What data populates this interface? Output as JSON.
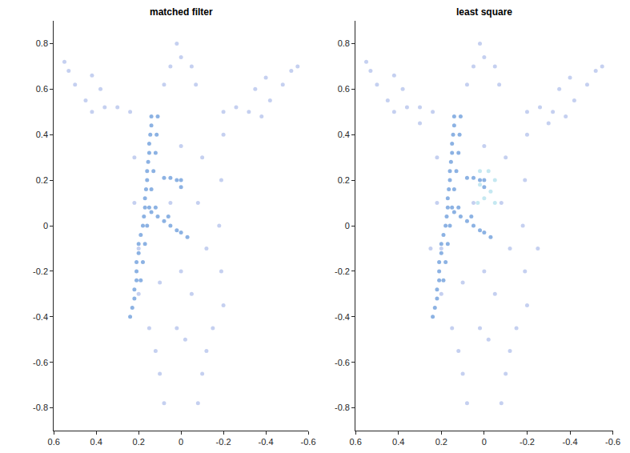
{
  "chart_data": [
    {
      "type": "scatter",
      "title": "matched filter",
      "marker": "circle",
      "grid": false,
      "xlim": [
        0.6,
        -0.6
      ],
      "ylim": [
        -0.9,
        0.9
      ],
      "xticks": [
        0.6,
        0.4,
        0.2,
        0,
        -0.2,
        -0.4,
        -0.6
      ],
      "yticks": [
        -0.8,
        -0.6,
        -0.4,
        -0.2,
        0,
        0.2,
        0.4,
        0.6,
        0.8
      ],
      "series": [
        {
          "color": "#9fb0e6",
          "x": [
            0.42,
            0.36,
            0.3,
            0.24,
            -0.2,
            -0.26,
            -0.32,
            -0.38,
            0.45,
            0.5,
            0.53,
            0.55,
            -0.42,
            -0.48,
            -0.52,
            -0.55,
            0.38,
            0.42,
            -0.35,
            -0.4,
            0.08,
            0.05,
            0.0,
            -0.05,
            -0.07,
            0.02,
            0.22,
            0.22,
            0.2,
            0.2,
            -0.2,
            -0.19,
            -0.18,
            -0.19,
            -0.2,
            0.0,
            -0.1,
            0.05,
            -0.08,
            -0.12,
            0.0,
            0.1,
            -0.05,
            0.15,
            0.12,
            0.1,
            0.08,
            -0.15,
            -0.12,
            -0.1,
            -0.08,
            0.02,
            -0.02
          ],
          "y": [
            0.5,
            0.52,
            0.52,
            0.5,
            0.5,
            0.52,
            0.5,
            0.48,
            0.55,
            0.62,
            0.68,
            0.72,
            0.55,
            0.62,
            0.68,
            0.7,
            0.6,
            0.66,
            0.6,
            0.65,
            0.62,
            0.7,
            0.74,
            0.7,
            0.62,
            0.8,
            0.3,
            0.1,
            -0.1,
            -0.3,
            0.4,
            0.2,
            0.0,
            -0.2,
            -0.35,
            0.35,
            0.3,
            0.1,
            0.1,
            -0.1,
            -0.2,
            -0.25,
            -0.3,
            -0.45,
            -0.55,
            -0.65,
            -0.78,
            -0.45,
            -0.55,
            -0.65,
            -0.78,
            -0.45,
            -0.5
          ]
        },
        {
          "color": "#3f7fd1",
          "x": [
            0.14,
            0.14,
            0.145,
            0.15,
            0.15,
            0.155,
            0.16,
            0.16,
            0.165,
            0.17,
            0.17,
            0.175,
            0.18,
            0.19,
            0.2,
            0.2,
            0.21,
            0.21,
            0.21,
            0.22,
            0.22,
            0.23,
            0.24,
            0.11,
            0.115,
            0.12,
            0.13,
            0.14,
            0.15,
            0.16,
            0.17,
            0.18,
            0.19,
            0.14,
            0.11,
            0.08,
            0.05,
            0.02,
            0.0,
            -0.03,
            0.12,
            0.06,
            0.08,
            0.05,
            0.02,
            0.0,
            0.0
          ],
          "y": [
            0.48,
            0.44,
            0.4,
            0.36,
            0.32,
            0.28,
            0.24,
            0.2,
            0.16,
            0.12,
            0.08,
            0.04,
            0.0,
            -0.04,
            -0.08,
            -0.12,
            -0.16,
            -0.2,
            -0.24,
            -0.28,
            -0.32,
            -0.36,
            -0.4,
            0.48,
            0.4,
            0.32,
            0.24,
            0.16,
            0.08,
            0.0,
            -0.08,
            -0.16,
            -0.24,
            0.06,
            0.04,
            0.02,
            0.0,
            -0.02,
            -0.03,
            -0.05,
            0.08,
            0.04,
            0.21,
            0.21,
            0.2,
            0.2,
            0.17
          ]
        }
      ]
    },
    {
      "type": "scatter",
      "title": "least square",
      "marker": "circle",
      "grid": false,
      "xlim": [
        0.6,
        -0.6
      ],
      "ylim": [
        -0.9,
        0.9
      ],
      "xticks": [
        0.6,
        0.4,
        0.2,
        0,
        -0.2,
        -0.4,
        -0.6
      ],
      "yticks": [
        -0.8,
        -0.6,
        -0.4,
        -0.2,
        0,
        0.2,
        0.4,
        0.6,
        0.8
      ],
      "series": [
        {
          "color": "#9fb0e6",
          "x": [
            0.42,
            0.36,
            0.3,
            0.24,
            -0.2,
            -0.26,
            -0.32,
            -0.38,
            0.45,
            0.5,
            0.53,
            0.55,
            -0.42,
            -0.48,
            -0.52,
            -0.55,
            0.38,
            0.42,
            -0.35,
            -0.4,
            0.08,
            0.05,
            0.0,
            -0.05,
            -0.07,
            0.02,
            0.22,
            0.22,
            0.2,
            0.2,
            -0.2,
            -0.19,
            -0.18,
            -0.19,
            -0.2,
            0.0,
            -0.1,
            0.05,
            -0.08,
            -0.12,
            0.0,
            0.1,
            -0.05,
            0.15,
            0.12,
            0.1,
            0.08,
            -0.15,
            -0.12,
            -0.1,
            -0.08,
            0.02,
            -0.02,
            0.25,
            -0.25,
            0.3,
            -0.3
          ],
          "y": [
            0.5,
            0.52,
            0.52,
            0.5,
            0.5,
            0.52,
            0.5,
            0.48,
            0.55,
            0.62,
            0.68,
            0.72,
            0.55,
            0.62,
            0.68,
            0.7,
            0.6,
            0.66,
            0.6,
            0.65,
            0.62,
            0.7,
            0.74,
            0.7,
            0.62,
            0.8,
            0.3,
            0.1,
            -0.1,
            -0.3,
            0.4,
            0.2,
            0.0,
            -0.2,
            -0.35,
            0.35,
            0.3,
            0.1,
            0.1,
            -0.1,
            -0.2,
            -0.25,
            -0.3,
            -0.45,
            -0.55,
            -0.65,
            -0.78,
            -0.45,
            -0.55,
            -0.65,
            -0.78,
            -0.45,
            -0.5,
            -0.1,
            -0.1,
            0.45,
            0.45
          ]
        },
        {
          "color": "#3f7fd1",
          "x": [
            0.14,
            0.14,
            0.145,
            0.15,
            0.15,
            0.155,
            0.16,
            0.16,
            0.165,
            0.17,
            0.17,
            0.175,
            0.18,
            0.19,
            0.2,
            0.2,
            0.21,
            0.21,
            0.21,
            0.22,
            0.22,
            0.23,
            0.24,
            0.11,
            0.115,
            0.12,
            0.13,
            0.14,
            0.15,
            0.16,
            0.17,
            0.18,
            0.19,
            0.14,
            0.11,
            0.08,
            0.05,
            0.02,
            0.0,
            -0.03,
            0.12,
            0.06,
            0.08,
            0.05,
            0.02,
            0.0,
            0.0
          ],
          "y": [
            0.48,
            0.44,
            0.4,
            0.36,
            0.32,
            0.28,
            0.24,
            0.2,
            0.16,
            0.12,
            0.08,
            0.04,
            0.0,
            -0.04,
            -0.08,
            -0.12,
            -0.16,
            -0.2,
            -0.24,
            -0.28,
            -0.32,
            -0.36,
            -0.4,
            0.48,
            0.4,
            0.32,
            0.24,
            0.16,
            0.08,
            0.0,
            -0.08,
            -0.16,
            -0.24,
            0.06,
            0.04,
            0.02,
            0.0,
            -0.02,
            -0.03,
            -0.05,
            0.08,
            0.04,
            0.21,
            0.21,
            0.2,
            0.2,
            0.17
          ]
        },
        {
          "color": "#9fd8e8",
          "x": [
            0.02,
            -0.02,
            -0.05,
            0.02,
            -0.03,
            0.0,
            -0.05,
            0.03
          ],
          "y": [
            0.24,
            0.24,
            0.2,
            0.18,
            0.15,
            0.12,
            0.1,
            0.1
          ]
        }
      ]
    }
  ]
}
